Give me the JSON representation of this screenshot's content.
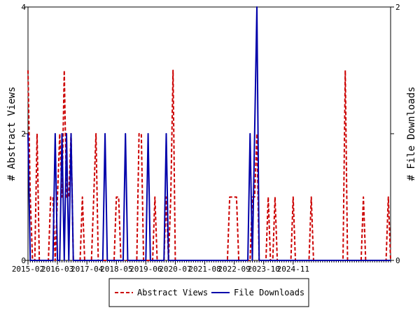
{
  "chart_data": {
    "type": "line",
    "title": "",
    "x_tick_labels": [
      "2015-02",
      "2016-03",
      "2017-04",
      "2018-05",
      "2019-06",
      "2020-07",
      "2021-08",
      "2022-09",
      "2023-10",
      "2024-11"
    ],
    "y_left": {
      "label": "# Abstract Views",
      "ylim": [
        0,
        4
      ],
      "ticks": [
        "0",
        "2",
        "4"
      ]
    },
    "y_right": {
      "label": "# File Downloads",
      "ylim": [
        0,
        2
      ],
      "ticks": [
        "0",
        "1",
        "2"
      ]
    },
    "legend_placement": "bottom-center",
    "grid": false,
    "series": [
      {
        "name": "Abstract Views",
        "axis": "left",
        "color": "#cc0000",
        "dash": "dashed",
        "values": [
          3,
          1,
          0,
          0,
          2,
          0,
          0,
          0,
          0,
          0,
          1,
          1,
          0,
          1,
          2,
          1,
          3,
          1,
          1,
          2,
          0,
          0,
          0,
          0,
          1,
          0,
          0,
          0,
          0,
          1,
          2,
          0,
          0,
          0,
          0,
          0,
          0,
          0,
          0,
          1,
          1,
          0,
          0,
          0,
          0,
          0,
          0,
          0,
          0,
          2,
          2,
          0,
          0,
          0,
          0,
          0,
          1,
          0,
          0,
          0,
          0,
          1,
          0,
          1,
          3,
          0,
          0,
          0,
          0,
          0,
          0,
          0,
          0,
          0,
          0,
          0,
          0,
          0,
          0,
          0,
          0,
          0,
          0,
          0,
          0,
          0,
          0,
          0,
          0,
          1,
          1,
          1,
          1,
          0,
          0,
          0,
          0,
          0,
          0,
          1,
          1,
          2,
          0,
          0,
          0,
          0,
          1,
          0,
          0,
          1,
          0,
          0,
          0,
          0,
          0,
          0,
          0,
          1,
          0,
          0,
          0,
          0,
          0,
          0,
          0,
          1,
          0,
          0,
          0,
          0,
          0,
          0,
          0,
          0,
          0,
          0,
          0,
          0,
          0,
          0,
          3,
          0,
          0,
          0,
          0,
          0,
          0,
          0,
          1,
          0,
          0,
          0,
          0,
          0,
          0,
          0,
          0,
          0,
          0,
          1,
          0
        ]
      },
      {
        "name": "File Downloads",
        "axis": "right",
        "color": "#0000aa",
        "dash": "solid",
        "values": [
          1,
          0,
          0,
          0,
          0,
          0,
          0,
          0,
          0,
          0,
          0,
          0,
          1,
          0,
          0,
          1,
          0,
          1,
          0,
          1,
          0,
          0,
          0,
          0,
          0,
          0,
          0,
          0,
          0,
          0,
          0,
          0,
          0,
          0,
          1,
          0,
          0,
          0,
          0,
          0,
          0,
          0,
          0,
          1,
          0,
          0,
          0,
          0,
          0,
          0,
          0,
          0,
          0,
          1,
          0,
          0,
          0,
          0,
          0,
          0,
          0,
          1,
          0,
          0,
          0,
          0,
          0,
          0,
          0,
          0,
          0,
          0,
          0,
          0,
          0,
          0,
          0,
          0,
          0,
          0,
          0,
          0,
          0,
          0,
          0,
          0,
          0,
          0,
          0,
          0,
          0,
          0,
          0,
          0,
          0,
          0,
          0,
          0,
          1,
          0,
          1,
          2,
          0,
          0,
          0,
          0,
          0,
          0,
          0,
          0,
          0,
          0,
          0,
          0,
          0,
          0,
          0,
          0,
          0,
          0,
          0,
          0,
          0,
          0,
          0,
          0,
          0,
          0,
          0,
          0,
          0,
          0,
          0,
          0,
          0,
          0,
          0,
          0,
          0,
          0,
          0,
          0,
          0,
          0,
          0,
          0,
          0,
          0,
          0,
          0,
          0,
          0,
          0,
          0,
          0,
          0,
          0,
          0,
          0,
          0,
          0
        ]
      }
    ]
  }
}
